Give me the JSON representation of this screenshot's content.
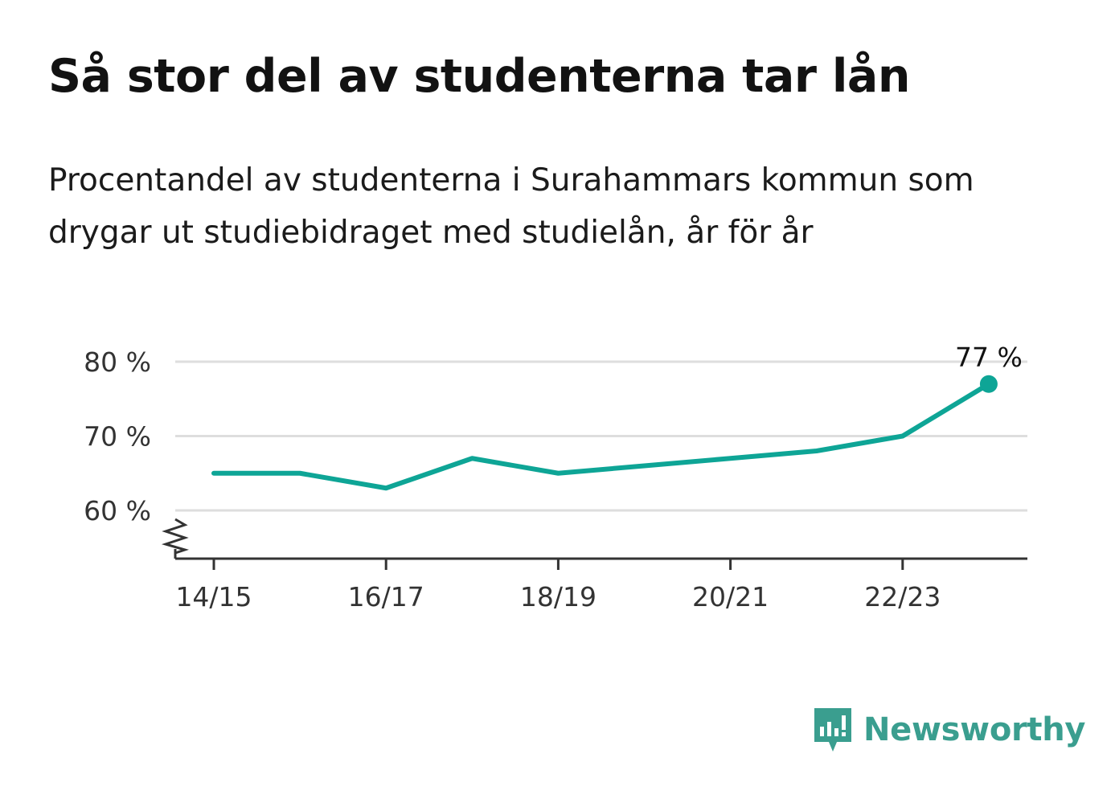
{
  "title": "Så stor del av studenterna tar lån",
  "subtitle": "Procentandel av studenterna i Surahammars kommun som drygar ut studiebidraget med studielån, år för år",
  "brand": {
    "name": "Newsworthy",
    "color": "#3a9e8f"
  },
  "chart_data": {
    "type": "line",
    "x": [
      "14/15",
      "15/16",
      "16/17",
      "17/18",
      "18/19",
      "19/20",
      "20/21",
      "21/22",
      "22/23",
      "23/24"
    ],
    "x_tick_labels": [
      "14/15",
      "16/17",
      "18/19",
      "20/21",
      "22/23"
    ],
    "series": [
      {
        "values": [
          65,
          65,
          63,
          67,
          65,
          66,
          67,
          68,
          70,
          77
        ],
        "color": "#0ea596"
      }
    ],
    "ylim": [
      54,
      80
    ],
    "y_ticks": [
      60,
      70,
      80
    ],
    "y_tick_labels": [
      "60 %",
      "70 %",
      "80 %"
    ],
    "axis_break": true,
    "grid": "horizontal",
    "end_label": "77 %",
    "xlabel": "",
    "ylabel": ""
  }
}
